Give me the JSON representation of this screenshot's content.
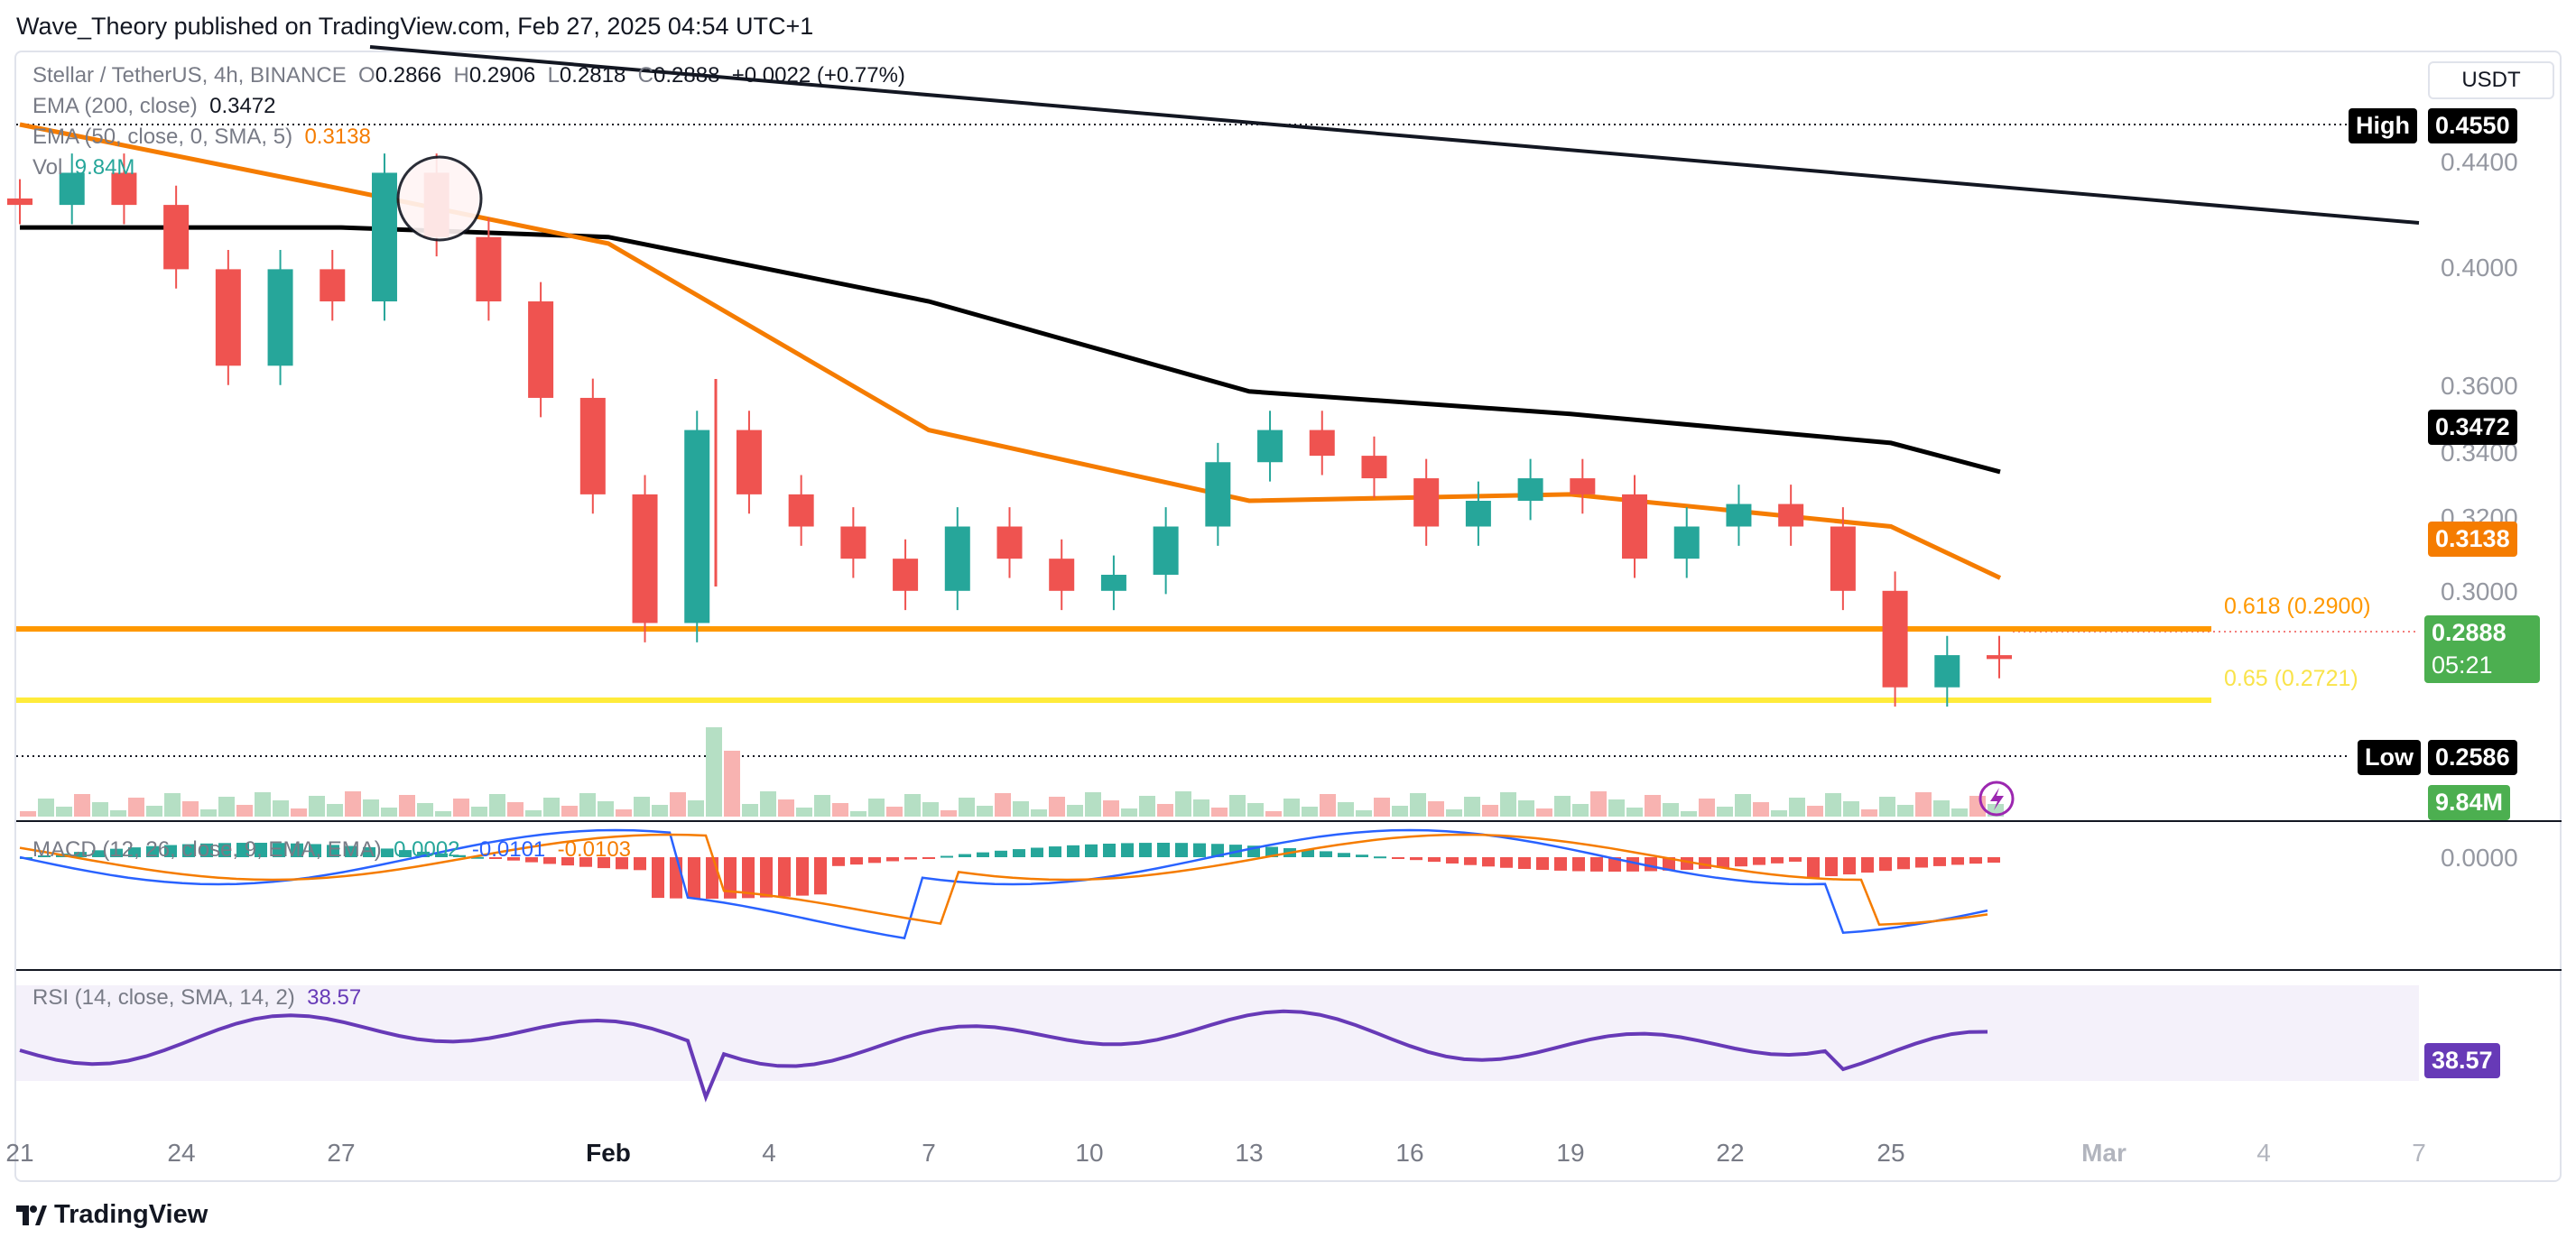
{
  "header": {
    "publisher_line": "Wave_Theory published on TradingView.com, Feb 27, 2025 04:54 UTC+1"
  },
  "legend": {
    "symbol": "Stellar / TetherUS, 4h, BINANCE",
    "o_label": "O",
    "o_value": "0.2866",
    "h_label": "H",
    "h_value": "0.2906",
    "l_label": "L",
    "l_value": "0.2818",
    "c_label": "C",
    "c_value": "0.2888",
    "change": "+0.0022 (+0.77%)",
    "ema200_label": "EMA (200, close)",
    "ema200_value": "0.3472",
    "ema50_label": "EMA (50, close, 0, SMA, 5)",
    "ema50_value": "0.3138",
    "vol_label": "Vol",
    "vol_value": "9.84M",
    "macd_label": "MACD (12, 26, close, 9, EMA, EMA)",
    "macd_v1": "0.0002",
    "macd_v2": "-0.0101",
    "macd_v3": "-0.0103",
    "rsi_label": "RSI (14, close, SMA, 14, 2)",
    "rsi_value": "38.57"
  },
  "price_axis": {
    "currency": "USDT",
    "ticks": [
      "0.4400",
      "0.4000",
      "0.3600",
      "0.3400",
      "0.3200",
      "0.3000"
    ],
    "high_label": "High",
    "high_value": "0.4550",
    "low_label": "Low",
    "low_value": "0.2586",
    "ema200_tag": "0.3472",
    "ema50_tag": "0.3138",
    "last_price": "0.2888",
    "countdown": "05:21",
    "volume_tag": "9.84M",
    "macd_zero": "0.0000",
    "rsi_tag": "38.57"
  },
  "fib_levels": {
    "fib_618": "0.618 (0.2900)",
    "fib_65": "0.65 (0.2721)"
  },
  "time_axis": [
    "21",
    "24",
    "27",
    "Feb",
    "4",
    "7",
    "10",
    "13",
    "16",
    "19",
    "22",
    "25",
    "Mar",
    "4",
    "7"
  ],
  "footer": {
    "brand": "TradingView"
  },
  "colors": {
    "up": "#26a69a",
    "down": "#ef5350",
    "ema50": "#f57c00",
    "ema200": "#000000",
    "fib618": "#ff9800",
    "fib65": "#ffeb3b",
    "rsi": "#673ab7",
    "macd": "#2962ff"
  },
  "chart_data": {
    "type": "line",
    "title": "Stellar / TetherUS, 4h, BINANCE",
    "x_tick_labels": [
      "21",
      "24",
      "27",
      "Feb",
      "4",
      "7",
      "10",
      "13",
      "16",
      "19",
      "22",
      "25",
      "Mar",
      "4",
      "7"
    ],
    "y_tick_labels": [
      "0.4400",
      "0.4000",
      "0.3600",
      "0.3400",
      "0.3200",
      "0.3000"
    ],
    "ylim": [
      0.252,
      0.463
    ],
    "grid": false,
    "series": [
      {
        "name": "EMA (200, close)",
        "x": [
          "21",
          "27",
          "Feb",
          "7",
          "13",
          "19",
          "25",
          "27"
        ],
        "values": [
          0.423,
          0.423,
          0.42,
          0.4,
          0.372,
          0.365,
          0.356,
          0.347
        ]
      },
      {
        "name": "EMA (50, close, 0, SMA, 5)",
        "x": [
          "21",
          "27",
          "Feb",
          "7",
          "13",
          "19",
          "25",
          "27"
        ],
        "values": [
          0.455,
          0.435,
          0.418,
          0.36,
          0.338,
          0.34,
          0.33,
          0.314
        ]
      }
    ],
    "closes_approx": [
      0.43,
      0.44,
      0.43,
      0.41,
      0.38,
      0.41,
      0.4,
      0.44,
      0.42,
      0.4,
      0.37,
      0.34,
      0.3,
      0.36,
      0.34,
      0.33,
      0.32,
      0.31,
      0.33,
      0.32,
      0.31,
      0.315,
      0.33,
      0.35,
      0.36,
      0.352,
      0.345,
      0.33,
      0.338,
      0.345,
      0.34,
      0.32,
      0.33,
      0.337,
      0.33,
      0.31,
      0.28,
      0.29,
      0.2888
    ],
    "horizontal_lines": [
      {
        "name": "0.618 (0.2900)",
        "value": 0.29
      },
      {
        "name": "0.65 (0.2721)",
        "value": 0.2721
      },
      {
        "name": "High",
        "value": 0.455
      },
      {
        "name": "Low",
        "value": 0.2586
      }
    ]
  }
}
